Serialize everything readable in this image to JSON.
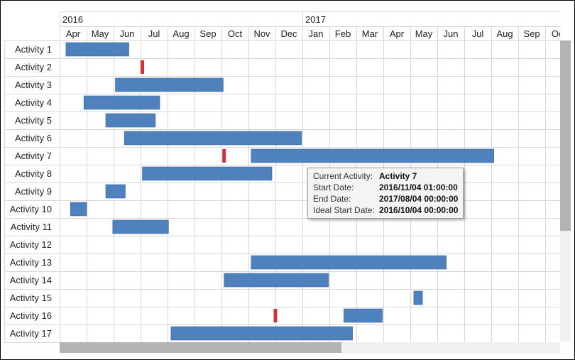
{
  "timeline": {
    "years": [
      {
        "label": "2016",
        "month_index": 0
      },
      {
        "label": "2017",
        "month_index": 9
      }
    ],
    "months": [
      "Apr",
      "May",
      "Jun",
      "Jul",
      "Aug",
      "Sep",
      "Oct",
      "Nov",
      "Dec",
      "Jan",
      "Feb",
      "Mar",
      "Apr",
      "May",
      "Jun",
      "Jul",
      "Aug",
      "Sep",
      "Oct"
    ],
    "start": "2016-04-01"
  },
  "colors": {
    "bar": "#4f81bd",
    "milestone": "#d03438",
    "grid": "#d8d8d8"
  },
  "rows": [
    {
      "label": "Activity 1",
      "bars": [
        [
          "2016-04-08",
          "2016-06-18"
        ]
      ],
      "markers": []
    },
    {
      "label": "Activity 2",
      "bars": [],
      "markers": [
        "2016-07-03"
      ]
    },
    {
      "label": "Activity 3",
      "bars": [
        [
          "2016-06-03",
          "2016-10-03"
        ]
      ],
      "markers": []
    },
    {
      "label": "Activity 4",
      "bars": [
        [
          "2016-04-28",
          "2016-07-23"
        ]
      ],
      "markers": []
    },
    {
      "label": "Activity 5",
      "bars": [
        [
          "2016-05-23",
          "2016-07-18"
        ]
      ],
      "markers": []
    },
    {
      "label": "Activity 6",
      "bars": [
        [
          "2016-06-13",
          "2016-12-31"
        ]
      ],
      "markers": []
    },
    {
      "label": "Activity 7",
      "bars": [
        [
          "2016-11-04",
          "2017-08-04"
        ]
      ],
      "markers": [
        "2016-10-04"
      ]
    },
    {
      "label": "Activity 8",
      "bars": [
        [
          "2016-07-03",
          "2016-11-27"
        ]
      ],
      "markers": []
    },
    {
      "label": "Activity 9",
      "bars": [
        [
          "2016-05-23",
          "2016-06-14"
        ]
      ],
      "markers": []
    },
    {
      "label": "Activity 10",
      "bars": [
        [
          "2016-04-13",
          "2016-05-01"
        ]
      ],
      "markers": []
    },
    {
      "label": "Activity 11",
      "bars": [
        [
          "2016-05-31",
          "2016-08-02"
        ]
      ],
      "markers": []
    },
    {
      "label": "Activity 12",
      "bars": [],
      "markers": []
    },
    {
      "label": "Activity 13",
      "bars": [
        [
          "2016-11-04",
          "2017-06-11"
        ]
      ],
      "markers": []
    },
    {
      "label": "Activity 14",
      "bars": [
        [
          "2016-10-04",
          "2017-01-31"
        ]
      ],
      "markers": []
    },
    {
      "label": "Activity 15",
      "bars": [
        [
          "2017-05-05",
          "2017-05-15"
        ]
      ],
      "markers": []
    },
    {
      "label": "Activity 16",
      "bars": [
        [
          "2017-02-16",
          "2017-03-31"
        ]
      ],
      "markers": [
        "2016-12-01"
      ]
    },
    {
      "label": "Activity 17",
      "bars": [
        [
          "2016-08-05",
          "2017-02-25"
        ]
      ],
      "markers": []
    }
  ],
  "tooltip": {
    "current_activity_label": "Current Activity:",
    "current_activity_value": "Activity 7",
    "start_date_label": "Start Date:",
    "start_date_value": "2016/11/04 01:00:00",
    "end_date_label": "End Date:",
    "end_date_value": "2017/08/04 00:00:00",
    "ideal_start_label": "Ideal Start Date:",
    "ideal_start_value": "2016/10/04 00:00:00"
  }
}
